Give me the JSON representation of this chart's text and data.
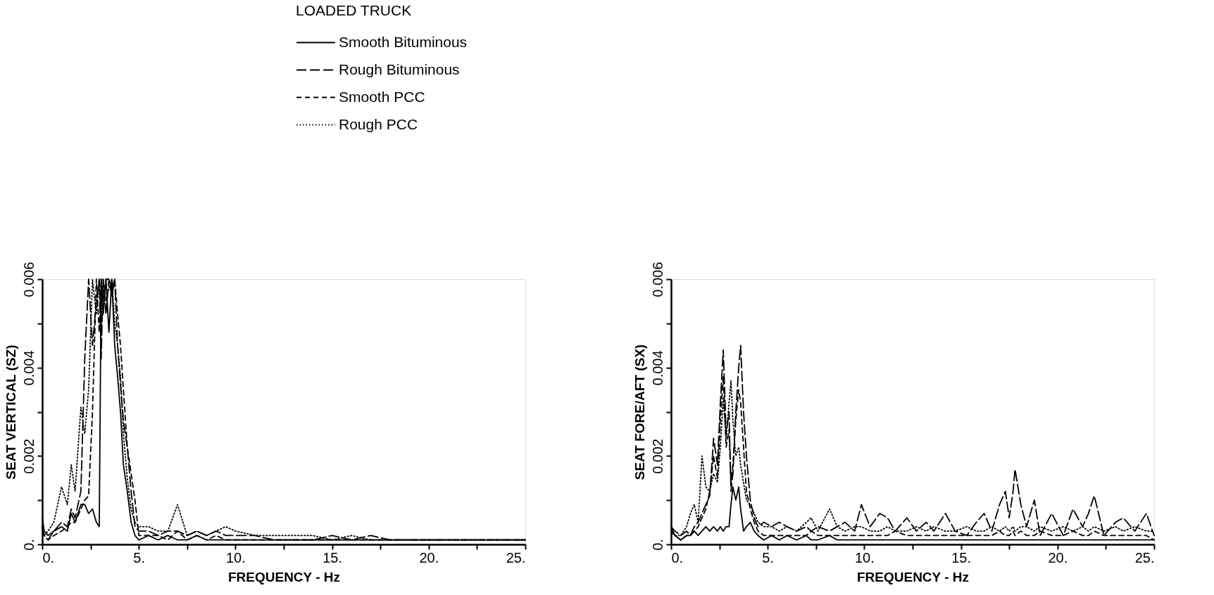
{
  "chart_data": [
    {
      "type": "line",
      "xlabel": "FREQUENCY - Hz",
      "ylabel": "SEAT VERTICAL (SZ)",
      "legend_title": "LOADED TRUCK",
      "legend": "top",
      "grid": false,
      "marker": "none",
      "xlim": [
        0,
        25
      ],
      "ylim": [
        0,
        0.006
      ],
      "xticks": [
        {
          "value": 0,
          "label": "0."
        },
        {
          "value": 2.5,
          "label": null
        },
        {
          "value": 5,
          "label": "5."
        },
        {
          "value": 7.5,
          "label": null
        },
        {
          "value": 10,
          "label": "10."
        },
        {
          "value": 12.5,
          "label": null
        },
        {
          "value": 15,
          "label": "15."
        },
        {
          "value": 17.5,
          "label": null
        },
        {
          "value": 20,
          "label": "20."
        },
        {
          "value": 22.5,
          "label": null
        },
        {
          "value": 25,
          "label": "25."
        }
      ],
      "yticks": [
        {
          "value": 0,
          "label": "0."
        },
        {
          "value": 0.001,
          "label": null
        },
        0.002,
        {
          "value": 0.003,
          "label": null
        },
        0.004,
        {
          "value": 0.005,
          "label": null
        },
        0.006
      ],
      "x": [
        0,
        0.1,
        0.3,
        0.6,
        1.0,
        1.3,
        1.5,
        1.7,
        2.0,
        2.2,
        2.4,
        2.6,
        2.8,
        2.95,
        3.05,
        3.15,
        3.3,
        3.45,
        3.6,
        3.75,
        3.9,
        4.05,
        4.2,
        4.4,
        4.6,
        4.8,
        5.0,
        5.5,
        6.0,
        6.5,
        7.0,
        7.5,
        8.0,
        8.5,
        9.0,
        9.5,
        10,
        11,
        12,
        13,
        14,
        15,
        16,
        17,
        18,
        19,
        20,
        21,
        22,
        23,
        24,
        25
      ],
      "series": [
        {
          "name": "Smooth Bituminous",
          "color": "#000000",
          "line_style": "solid",
          "values": [
            0.0006,
            0.0003,
            0.0002,
            0.0003,
            0.0004,
            0.0003,
            0.0007,
            0.0005,
            0.0009,
            0.0009,
            0.0007,
            0.0008,
            0.0005,
            0.0004,
            0.006,
            0.0052,
            0.006,
            0.0048,
            0.006,
            0.0045,
            0.0038,
            0.003,
            0.0018,
            0.0012,
            0.0005,
            0.0002,
            0.0001,
            0.0002,
            0.0001,
            0.0002,
            0.0001,
            0.0001,
            0.0002,
            0.0001,
            0.0001,
            0.0001,
            0.0001,
            0.0001,
            0.0001,
            0.0001,
            0.0001,
            0.0001,
            0.0001,
            0.0001,
            0.0001,
            0.0001,
            0.0001,
            0.0001,
            0.0001,
            0.0001,
            0.0001,
            0.0001
          ]
        },
        {
          "name": "Rough Bituminous",
          "color": "#000000",
          "line_style": "dashed",
          "values": [
            0.0004,
            0.0002,
            0.0001,
            0.0003,
            0.0005,
            0.0004,
            0.0008,
            0.0006,
            0.0012,
            0.0042,
            0.006,
            0.0045,
            0.0055,
            0.006,
            0.0042,
            0.006,
            0.0052,
            0.006,
            0.0056,
            0.006,
            0.0045,
            0.0036,
            0.0028,
            0.0022,
            0.0012,
            0.0004,
            0.0003,
            0.0003,
            0.0002,
            0.0003,
            0.0003,
            0.0002,
            0.0003,
            0.0002,
            0.0003,
            0.0002,
            0.0002,
            0.0002,
            0.0001,
            0.0001,
            0.0001,
            0.0002,
            0.0001,
            0.0002,
            0.0001,
            0.0001,
            0.0001,
            0.0001,
            0.0001,
            0.0001,
            0.0001,
            0.0001
          ]
        },
        {
          "name": "Smooth PCC",
          "color": "#000000",
          "line_style": "dashed",
          "values": [
            0.0003,
            0.0002,
            0.0001,
            0.0002,
            0.0003,
            0.0004,
            0.0005,
            0.0005,
            0.0008,
            0.001,
            0.0011,
            0.003,
            0.006,
            0.0048,
            0.006,
            0.0055,
            0.006,
            0.006,
            0.0058,
            0.006,
            0.0052,
            0.0045,
            0.0035,
            0.0022,
            0.0016,
            0.001,
            0.0002,
            0.0002,
            0.0002,
            0.0001,
            0.0003,
            0.0001,
            0.0002,
            0.0001,
            0.0002,
            0.0001,
            0.0001,
            0.0001,
            0.0001,
            0.0001,
            0.0001,
            0.0001,
            0.0001,
            0.0001,
            0.0001,
            0.0001,
            0.0001,
            0.0001,
            0.0001,
            0.0001,
            0.0001,
            0.0001
          ]
        },
        {
          "name": "Rough PCC",
          "color": "#000000",
          "line_style": "dotted",
          "values": [
            0.0004,
            0.0002,
            0.0003,
            0.0005,
            0.0013,
            0.0009,
            0.0018,
            0.0012,
            0.0031,
            0.0025,
            0.0035,
            0.006,
            0.0052,
            0.006,
            0.0048,
            0.006,
            0.0055,
            0.0058,
            0.006,
            0.005,
            0.0045,
            0.0038,
            0.0025,
            0.0015,
            0.0008,
            0.0005,
            0.0004,
            0.0004,
            0.0003,
            0.0003,
            0.0009,
            0.0002,
            0.0003,
            0.0002,
            0.0003,
            0.0004,
            0.0003,
            0.0002,
            0.0002,
            0.0002,
            0.0002,
            0.0001,
            0.0002,
            0.0001,
            0.0001,
            0.0001,
            0.0001,
            0.0001,
            0.0001,
            0.0001,
            0.0001,
            0.0001
          ]
        }
      ]
    },
    {
      "type": "line",
      "xlabel": "FREQUENCY - Hz",
      "ylabel": "SEAT FORE/AFT (SX)",
      "grid": false,
      "marker": "none",
      "xlim": [
        0,
        25
      ],
      "ylim": [
        0,
        0.006
      ],
      "xticks": [
        {
          "value": 0,
          "label": "0."
        },
        {
          "value": 2.5,
          "label": null
        },
        {
          "value": 5,
          "label": "5."
        },
        {
          "value": 7.5,
          "label": null
        },
        {
          "value": 10,
          "label": "10."
        },
        {
          "value": 12.5,
          "label": null
        },
        {
          "value": 15,
          "label": "15."
        },
        {
          "value": 17.5,
          "label": null
        },
        {
          "value": 20,
          "label": "20."
        },
        {
          "value": 22.5,
          "label": null
        },
        {
          "value": 25,
          "label": "25."
        }
      ],
      "yticks": [
        {
          "value": 0,
          "label": "0."
        },
        {
          "value": 0.001,
          "label": null
        },
        0.002,
        {
          "value": 0.003,
          "label": null
        },
        0.004,
        {
          "value": 0.005,
          "label": null
        },
        0.006
      ],
      "x": [
        0,
        0.2,
        0.5,
        0.8,
        1.0,
        1.2,
        1.4,
        1.6,
        1.8,
        2.0,
        2.2,
        2.4,
        2.55,
        2.7,
        2.85,
        3.0,
        3.1,
        3.2,
        3.35,
        3.5,
        3.6,
        3.75,
        3.9,
        4.1,
        4.3,
        4.5,
        4.8,
        5.2,
        5.6,
        6.0,
        6.5,
        7.0,
        7.25,
        7.6,
        8.2,
        8.6,
        9.0,
        9.5,
        9.85,
        10.3,
        10.8,
        11.2,
        11.6,
        12.2,
        12.7,
        13.2,
        13.6,
        14.2,
        14.7,
        15.3,
        15.8,
        16.2,
        16.6,
        17.0,
        17.3,
        17.5,
        17.7,
        17.8,
        18.1,
        18.4,
        18.8,
        19.1,
        19.7,
        20.3,
        20.8,
        21.3,
        21.6,
        21.9,
        22.4,
        23.0,
        23.4,
        24.0,
        24.6,
        25.0
      ],
      "series": [
        {
          "color": "#000000",
          "line_style": "solid",
          "values": [
            0.0004,
            0.0002,
            0.0001,
            0.0002,
            0.0002,
            0.0003,
            0.0002,
            0.0003,
            0.0004,
            0.0003,
            0.0004,
            0.0003,
            0.0004,
            0.0003,
            0.0004,
            0.0004,
            0.0009,
            0.0013,
            0.001,
            0.0013,
            0.0008,
            0.0003,
            0.0004,
            0.0005,
            0.0003,
            0.0002,
            0.0001,
            0.0002,
            0.0001,
            0.0002,
            0.0001,
            0.0002,
            0.0001,
            0.0001,
            0.0002,
            0.0001,
            0.0001,
            0.0001,
            0.0001,
            0.0001,
            0.0001,
            0.0001,
            0.0001,
            0.0001,
            0.0001,
            0.0001,
            0.0001,
            0.0001,
            0.0001,
            0.0001,
            0.0001,
            0.0001,
            0.0001,
            0.0001,
            0.0001,
            0.0001,
            0.0001,
            0.0001,
            0.0001,
            0.0001,
            0.0001,
            0.0001,
            0.0001,
            0.0001,
            0.0001,
            0.0001,
            0.0001,
            0.0001,
            0.0001,
            0.0001,
            0.0001,
            0.0001,
            0.0001,
            0.0001
          ]
        },
        {
          "color": "#000000",
          "line_style": "dashed",
          "values": [
            0.0004,
            0.0003,
            0.0002,
            0.0003,
            0.0002,
            0.0004,
            0.0005,
            0.0007,
            0.0009,
            0.0011,
            0.0024,
            0.0018,
            0.0032,
            0.0044,
            0.0025,
            0.003,
            0.0012,
            0.0016,
            0.003,
            0.004,
            0.0045,
            0.003,
            0.002,
            0.001,
            0.0006,
            0.0004,
            0.0005,
            0.0004,
            0.0005,
            0.0004,
            0.0003,
            0.0004,
            0.0003,
            0.0004,
            0.0003,
            0.0004,
            0.0005,
            0.0003,
            0.0009,
            0.0004,
            0.0007,
            0.0006,
            0.0003,
            0.0006,
            0.0003,
            0.0005,
            0.0003,
            0.0007,
            0.0003,
            0.0002,
            0.0005,
            0.0007,
            0.0003,
            0.0009,
            0.0012,
            0.0006,
            0.0012,
            0.0017,
            0.0009,
            0.0004,
            0.001,
            0.0002,
            0.0007,
            0.0002,
            0.0008,
            0.0004,
            0.0007,
            0.0011,
            0.0002,
            0.0005,
            0.0006,
            0.0003,
            0.0007,
            0.0002
          ]
        },
        {
          "color": "#000000",
          "line_style": "dashed",
          "values": [
            0.0003,
            0.0002,
            0.0001,
            0.0002,
            0.0002,
            0.0003,
            0.0004,
            0.0006,
            0.0008,
            0.0012,
            0.002,
            0.0015,
            0.0028,
            0.0038,
            0.0022,
            0.0026,
            0.0014,
            0.0018,
            0.0028,
            0.0035,
            0.0032,
            0.0022,
            0.0012,
            0.0008,
            0.0005,
            0.0003,
            0.0002,
            0.0002,
            0.0002,
            0.0002,
            0.0002,
            0.0002,
            0.0003,
            0.0002,
            0.0002,
            0.0002,
            0.0002,
            0.0002,
            0.0002,
            0.0002,
            0.0002,
            0.0002,
            0.0003,
            0.0002,
            0.0002,
            0.0002,
            0.0002,
            0.0002,
            0.0002,
            0.0002,
            0.0002,
            0.0002,
            0.0002,
            0.0003,
            0.0002,
            0.0002,
            0.0003,
            0.0002,
            0.0003,
            0.0002,
            0.0002,
            0.0003,
            0.0002,
            0.0002,
            0.0003,
            0.0002,
            0.0002,
            0.0003,
            0.0002,
            0.0002,
            0.0002,
            0.0002,
            0.0002,
            0.0001
          ]
        },
        {
          "color": "#000000",
          "line_style": "dotted",
          "values": [
            0.0003,
            0.0002,
            0.0002,
            0.0004,
            0.0007,
            0.0009,
            0.0005,
            0.002,
            0.0013,
            0.0012,
            0.0016,
            0.0014,
            0.0022,
            0.0033,
            0.0024,
            0.0032,
            0.0037,
            0.0028,
            0.002,
            0.0022,
            0.0018,
            0.0014,
            0.001,
            0.0009,
            0.0007,
            0.0005,
            0.0004,
            0.0004,
            0.0003,
            0.0004,
            0.0003,
            0.0005,
            0.0006,
            0.0003,
            0.0008,
            0.0004,
            0.0003,
            0.0004,
            0.0004,
            0.0003,
            0.0003,
            0.0004,
            0.0003,
            0.0003,
            0.0004,
            0.0003,
            0.0004,
            0.0003,
            0.0003,
            0.0004,
            0.0003,
            0.0003,
            0.0004,
            0.0003,
            0.0004,
            0.0003,
            0.0004,
            0.0003,
            0.0004,
            0.0004,
            0.0003,
            0.0004,
            0.0003,
            0.0004,
            0.0003,
            0.0004,
            0.0003,
            0.0004,
            0.0003,
            0.0004,
            0.0003,
            0.0004,
            0.0003,
            0.0003
          ]
        }
      ]
    }
  ]
}
